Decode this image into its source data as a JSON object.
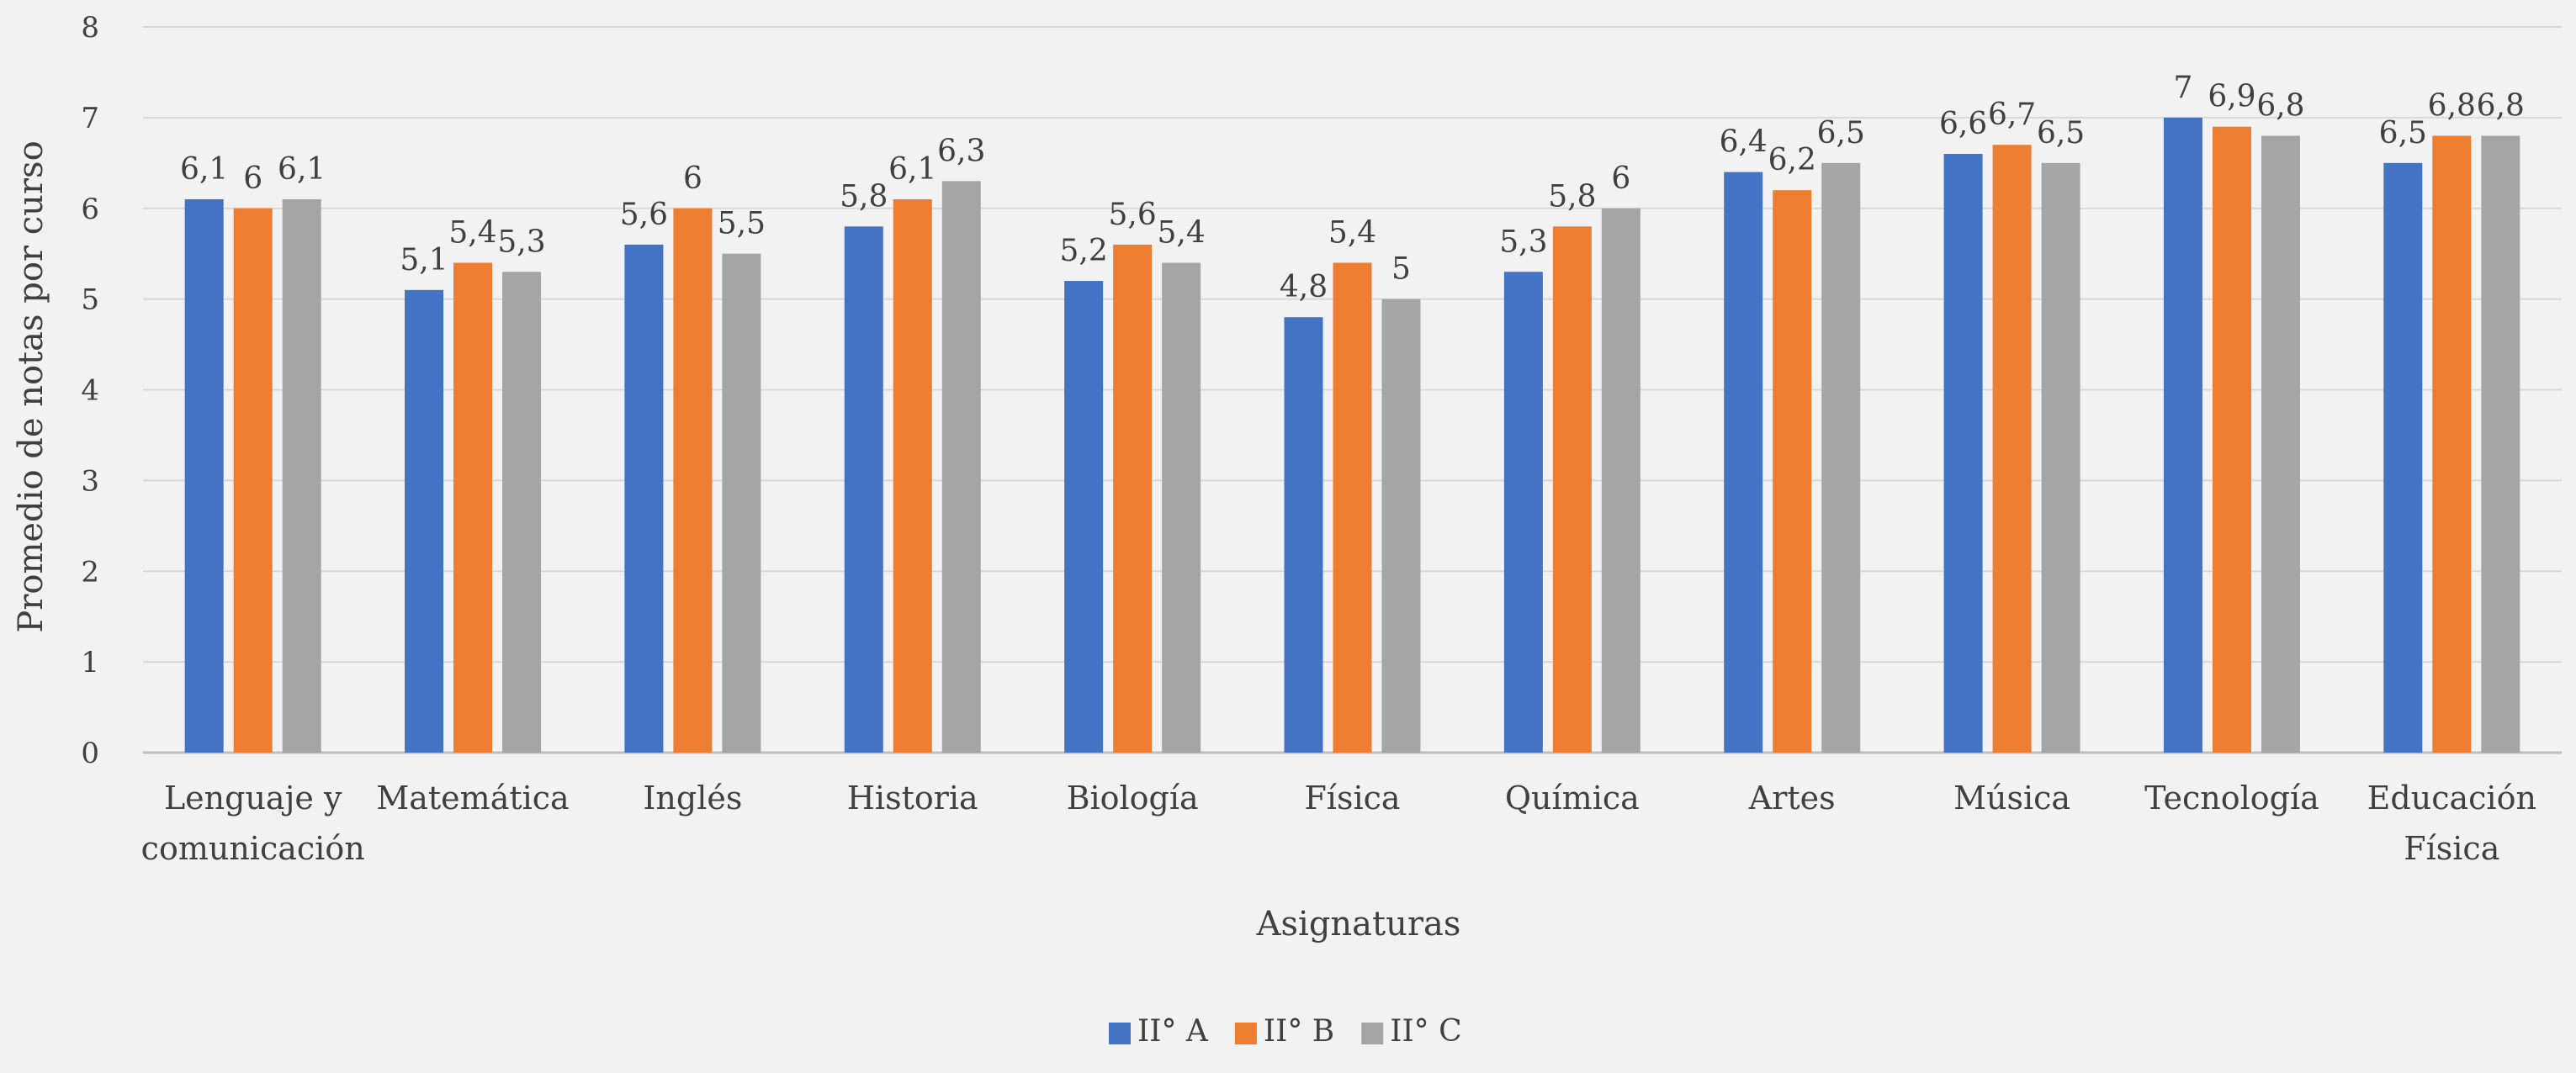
{
  "chart_data": {
    "type": "bar",
    "title": "",
    "xlabel": "Asignaturas",
    "ylabel": "Promedio de notas por curso",
    "ylim": [
      0,
      8
    ],
    "yticks": [
      0,
      1,
      2,
      3,
      4,
      5,
      6,
      7,
      8
    ],
    "grid": true,
    "legend_position": "bottom",
    "categories": [
      [
        "Lenguaje y",
        "comunicación"
      ],
      [
        "Matemática"
      ],
      [
        "Inglés"
      ],
      [
        "Historia"
      ],
      [
        "Biología"
      ],
      [
        "Física"
      ],
      [
        "Química"
      ],
      [
        "Artes"
      ],
      [
        "Música"
      ],
      [
        "Tecnología"
      ],
      [
        "Educación",
        "Física"
      ]
    ],
    "series": [
      {
        "name": "II° A",
        "color": "#4472c4",
        "values": [
          6.1,
          5.1,
          5.6,
          5.8,
          5.2,
          4.8,
          5.3,
          6.4,
          6.6,
          7,
          6.5
        ],
        "labels": [
          "6,1",
          "5,1",
          "5,6",
          "5,8",
          "5,2",
          "4,8",
          "5,3",
          "6,4",
          "6,6",
          "7",
          "6,5"
        ]
      },
      {
        "name": "II° B",
        "color": "#ed7d31",
        "values": [
          6,
          5.4,
          6,
          6.1,
          5.6,
          5.4,
          5.8,
          6.2,
          6.7,
          6.9,
          6.8
        ],
        "labels": [
          "6",
          "5,4",
          "6",
          "6,1",
          "5,6",
          "5,4",
          "5,8",
          "6,2",
          "6,7",
          "6,9",
          "6,8"
        ]
      },
      {
        "name": "II° C",
        "color": "#a5a5a5",
        "values": [
          6.1,
          5.3,
          5.5,
          6.3,
          5.4,
          5,
          6,
          6.5,
          6.5,
          6.8,
          6.8
        ],
        "labels": [
          "6,1",
          "5,3",
          "5,5",
          "6,3",
          "5,4",
          "5",
          "6",
          "6,5",
          "6,5",
          "6,8",
          "6,8"
        ]
      }
    ]
  }
}
